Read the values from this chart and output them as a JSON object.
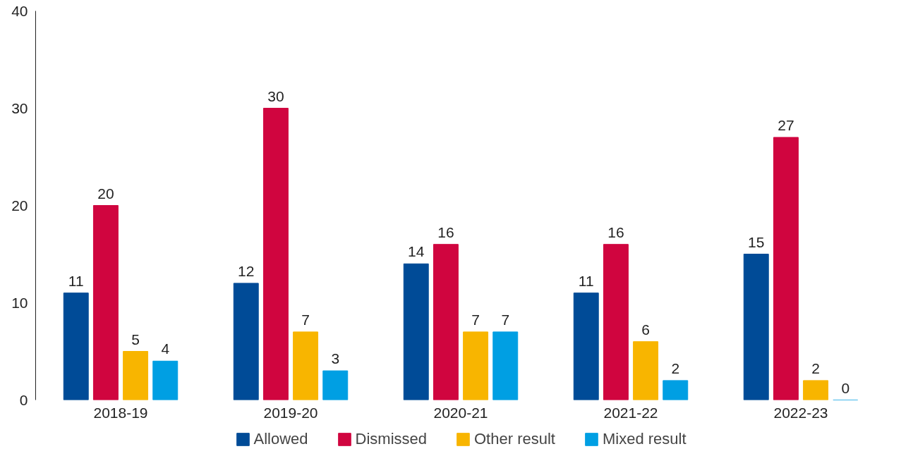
{
  "chart_data": {
    "type": "bar",
    "categories": [
      "2018-19",
      "2019-20",
      "2020-21",
      "2021-22",
      "2022-23"
    ],
    "series": [
      {
        "name": "Allowed",
        "color": "#004b97",
        "values": [
          11,
          12,
          14,
          11,
          15
        ]
      },
      {
        "name": "Dismissed",
        "color": "#d0053f",
        "values": [
          20,
          30,
          16,
          16,
          27
        ]
      },
      {
        "name": "Other result",
        "color": "#f8b500",
        "values": [
          5,
          7,
          7,
          6,
          2
        ]
      },
      {
        "name": "Mixed result",
        "color": "#009fe3",
        "values": [
          4,
          3,
          7,
          2,
          0
        ]
      }
    ],
    "ylim": [
      0,
      40
    ],
    "yticks": [
      0,
      10,
      20,
      30,
      40
    ],
    "grid": false,
    "legend": "bottom",
    "data_labels": true
  }
}
